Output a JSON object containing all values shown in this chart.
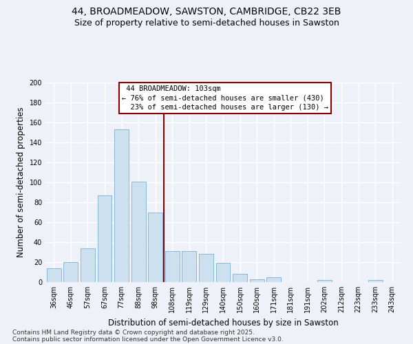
{
  "title": "44, BROADMEADOW, SAWSTON, CAMBRIDGE, CB22 3EB",
  "subtitle": "Size of property relative to semi-detached houses in Sawston",
  "xlabel": "Distribution of semi-detached houses by size in Sawston",
  "ylabel": "Number of semi-detached properties",
  "bar_color": "#cce0f0",
  "bar_edge_color": "#7ab0d4",
  "bar_edge_width": 0.6,
  "categories": [
    "36sqm",
    "46sqm",
    "57sqm",
    "67sqm",
    "77sqm",
    "88sqm",
    "98sqm",
    "108sqm",
    "119sqm",
    "129sqm",
    "140sqm",
    "150sqm",
    "160sqm",
    "171sqm",
    "181sqm",
    "191sqm",
    "202sqm",
    "212sqm",
    "223sqm",
    "233sqm",
    "243sqm"
  ],
  "values": [
    14,
    20,
    34,
    87,
    153,
    101,
    70,
    31,
    31,
    28,
    19,
    8,
    3,
    5,
    0,
    0,
    2,
    0,
    0,
    2,
    0
  ],
  "vline_x_idx": 7,
  "vline_color": "#8b0000",
  "vline_label": "44 BROADMEADOW: 103sqm",
  "pct_smaller": "76% of semi-detached houses are smaller (430)",
  "pct_larger": "23% of semi-detached houses are larger (130)",
  "legend_box_color": "#8b0000",
  "ylim": [
    0,
    200
  ],
  "yticks": [
    0,
    20,
    40,
    60,
    80,
    100,
    120,
    140,
    160,
    180,
    200
  ],
  "footnote1": "Contains HM Land Registry data © Crown copyright and database right 2025.",
  "footnote2": "Contains public sector information licensed under the Open Government Licence v3.0.",
  "bg_color": "#eef2f8",
  "grid_color": "#ffffff",
  "title_fontsize": 10,
  "subtitle_fontsize": 9,
  "axis_label_fontsize": 8.5,
  "tick_fontsize": 7,
  "footnote_fontsize": 6.5,
  "annotation_fontsize": 7.5
}
